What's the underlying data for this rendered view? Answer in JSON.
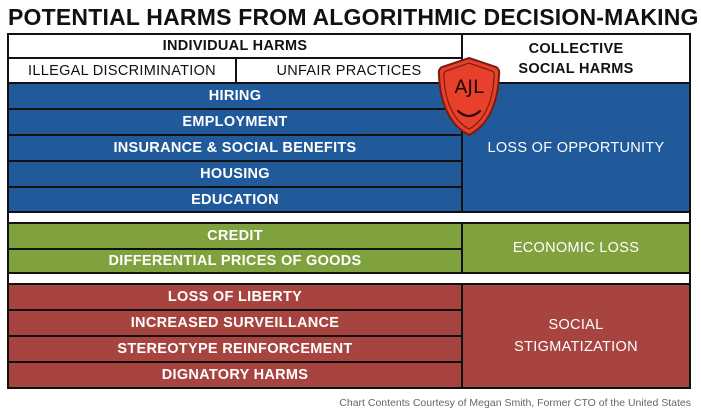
{
  "title": "POTENTIAL HARMS FROM ALGORITHMIC DECISION-MAKING",
  "header": {
    "individual": "INDIVIDUAL HARMS",
    "illegal": "ILLEGAL DISCRIMINATION",
    "unfair": "UNFAIR PRACTICES",
    "collective_line1": "COLLECTIVE",
    "collective_line2": "SOCIAL HARMS"
  },
  "groups": [
    {
      "color": "#215a9b",
      "items": [
        "HIRING",
        "EMPLOYMENT",
        "INSURANCE & SOCIAL BENEFITS",
        "HOUSING",
        "EDUCATION"
      ],
      "collective": [
        "LOSS OF OPPORTUNITY"
      ]
    },
    {
      "color": "#7fa23e",
      "items": [
        "CREDIT",
        "DIFFERENTIAL PRICES OF GOODS"
      ],
      "collective": [
        "ECONOMIC LOSS"
      ]
    },
    {
      "color": "#a8443f",
      "items": [
        "LOSS OF LIBERTY",
        "INCREASED SURVEILLANCE",
        "STEREOTYPE REINFORCEMENT",
        "DIGNATORY HARMS"
      ],
      "collective": [
        "SOCIAL",
        "STIGMATIZATION"
      ]
    }
  ],
  "logo_text": "AJL",
  "credit": "Chart Contents Courtesy of Megan Smith, Former CTO of the United States"
}
